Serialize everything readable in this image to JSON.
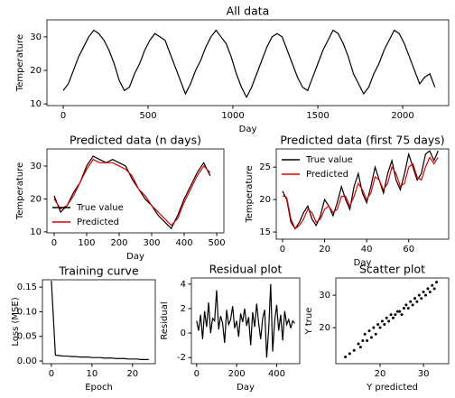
{
  "chart_data": [
    {
      "type": "line",
      "title": "All data",
      "xlabel": "Day",
      "ylabel": "Temperature",
      "x": [
        0,
        30,
        60,
        90,
        120,
        150,
        180,
        210,
        240,
        270,
        300,
        330,
        360,
        390,
        420,
        450,
        480,
        510,
        540,
        570,
        600,
        630,
        660,
        690,
        720,
        750,
        780,
        810,
        840,
        870,
        900,
        930,
        960,
        990,
        1020,
        1050,
        1080,
        1110,
        1140,
        1170,
        1200,
        1230,
        1260,
        1290,
        1320,
        1350,
        1380,
        1410,
        1440,
        1470,
        1500,
        1530,
        1560,
        1590,
        1620,
        1650,
        1680,
        1710,
        1740,
        1770,
        1800,
        1830,
        1860,
        1890,
        1920,
        1950,
        1980,
        2010,
        2040,
        2070,
        2100,
        2130,
        2160,
        2190
      ],
      "values": [
        14,
        16,
        20,
        24,
        27,
        30,
        32,
        31,
        29,
        26,
        22,
        17,
        14,
        15,
        19,
        22,
        26,
        29,
        31,
        30,
        29,
        25,
        21,
        17,
        13,
        16,
        20,
        23,
        27,
        30,
        32,
        30,
        28,
        24,
        19,
        15,
        12,
        15,
        19,
        23,
        27,
        30,
        31,
        30,
        26,
        22,
        18,
        15,
        14,
        18,
        22,
        26,
        29,
        32,
        31,
        28,
        24,
        19,
        16,
        13,
        15,
        19,
        22,
        26,
        29,
        32,
        31,
        28,
        24,
        20,
        16,
        18,
        19,
        15
      ],
      "color": "#000000",
      "xlim": [
        -96,
        2271
      ],
      "xticks": [
        0,
        500,
        1000,
        1500,
        2000
      ],
      "ylim": [
        9.5,
        35.1
      ],
      "yticks": [
        10,
        20,
        30
      ]
    },
    {
      "type": "line",
      "title": "Predicted data (n days)",
      "xlabel": "Day",
      "ylabel": "Temperature",
      "x": [
        0,
        20,
        40,
        60,
        80,
        100,
        120,
        140,
        160,
        180,
        200,
        220,
        240,
        260,
        280,
        300,
        320,
        340,
        360,
        380,
        400,
        420,
        440,
        460,
        480
      ],
      "series": [
        {
          "name": "True value",
          "color": "#000000",
          "values": [
            21,
            16,
            18,
            22,
            25,
            30,
            33,
            32,
            31,
            32,
            31,
            30,
            26,
            23,
            20,
            18,
            15,
            13,
            11,
            15,
            20,
            24,
            28,
            31,
            27
          ]
        },
        {
          "name": "Predicted",
          "color": "#dd0000",
          "values": [
            20,
            17,
            18,
            21,
            25,
            29,
            32,
            31,
            31,
            31,
            30,
            29,
            27,
            23,
            21,
            18,
            16,
            14,
            12,
            14,
            19,
            23,
            27,
            30,
            28
          ]
        }
      ],
      "legend": "lower left",
      "xlim": [
        -22,
        522
      ],
      "xticks": [
        0,
        100,
        200,
        300,
        400,
        500
      ],
      "ylim": [
        9.7,
        35.2
      ],
      "yticks": [
        10,
        20,
        30
      ]
    },
    {
      "type": "line",
      "title": "Predicted data (first 75 days)",
      "xlabel": "Day",
      "ylabel": "Temperature",
      "x": [
        0,
        2,
        4,
        6,
        8,
        10,
        12,
        14,
        16,
        18,
        20,
        22,
        24,
        26,
        28,
        30,
        32,
        34,
        36,
        38,
        40,
        42,
        44,
        46,
        48,
        50,
        52,
        54,
        56,
        58,
        60,
        62,
        64,
        66,
        68,
        70,
        72,
        74
      ],
      "series": [
        {
          "name": "True value",
          "color": "#000000",
          "values": [
            21.3,
            20,
            16.5,
            15.5,
            16.5,
            18,
            19,
            17,
            16,
            17.5,
            20,
            19,
            17.5,
            19.5,
            22,
            20,
            18.5,
            22,
            24,
            21,
            19.5,
            22,
            25,
            23,
            21,
            24,
            26,
            23,
            21.5,
            24,
            27,
            25,
            23,
            24,
            27,
            27.5,
            26,
            27.5
          ]
        },
        {
          "name": "Predicted",
          "color": "#dd0000",
          "values": [
            20.6,
            20.3,
            17,
            15.5,
            16,
            17,
            18.5,
            18,
            16.5,
            17,
            18.5,
            19,
            18,
            18.5,
            20.5,
            20.5,
            19,
            20.5,
            22.5,
            21.5,
            20,
            21,
            23.5,
            23,
            21.5,
            22.5,
            25,
            24,
            22,
            22.5,
            25,
            25.5,
            23.5,
            23,
            25,
            26.5,
            25.5,
            26.5
          ]
        }
      ],
      "legend": "upper left",
      "xlim": [
        -3,
        79
      ],
      "xticks": [
        0,
        20,
        40,
        60
      ],
      "ylim": [
        13.9,
        27.8
      ],
      "yticks": [
        15,
        20,
        25
      ]
    },
    {
      "type": "line",
      "title": "Training curve",
      "xlabel": "Epoch",
      "ylabel": "Loss (MSE)",
      "x": [
        0,
        1,
        2,
        3,
        4,
        5,
        6,
        7,
        8,
        9,
        10,
        11,
        12,
        13,
        14,
        15,
        16,
        17,
        18,
        19,
        20,
        21,
        22,
        23,
        24
      ],
      "values": [
        0.163,
        0.012,
        0.011,
        0.01,
        0.01,
        0.009,
        0.009,
        0.008,
        0.008,
        0.008,
        0.007,
        0.007,
        0.007,
        0.006,
        0.006,
        0.006,
        0.005,
        0.005,
        0.005,
        0.004,
        0.004,
        0.004,
        0.003,
        0.003,
        0.003
      ],
      "color": "#000000",
      "xlim": [
        -2.2,
        25.6
      ],
      "xticks": [
        0,
        10,
        20
      ],
      "ylim": [
        -0.0055,
        0.165
      ],
      "yticks": [
        {
          "value": 0,
          "label": "0.00"
        },
        {
          "value": 0.05,
          "label": "0.05"
        },
        {
          "value": 0.1,
          "label": "0.10"
        },
        {
          "value": 0.15,
          "label": "0.15"
        }
      ]
    },
    {
      "type": "line",
      "title": "Residual plot",
      "xlabel": "Day",
      "ylabel": "Residual",
      "x": [
        0,
        10,
        20,
        30,
        40,
        50,
        60,
        70,
        80,
        90,
        100,
        110,
        120,
        130,
        140,
        150,
        160,
        170,
        180,
        190,
        200,
        210,
        220,
        230,
        240,
        250,
        260,
        270,
        280,
        290,
        300,
        310,
        320,
        330,
        340,
        350,
        360,
        370,
        380,
        390,
        400,
        410,
        420,
        430,
        440,
        450,
        460,
        470,
        480,
        490
      ],
      "values": [
        1.0,
        0.2,
        1.5,
        -0.5,
        1.8,
        0.5,
        2.5,
        0.0,
        1.2,
        1.0,
        3.5,
        0.3,
        1.4,
        0.8,
        -0.8,
        1.9,
        0.7,
        1.1,
        2.2,
        0.4,
        1.0,
        -0.3,
        1.6,
        0.9,
        2.0,
        0.6,
        1.3,
        -1.0,
        1.7,
        0.5,
        2.4,
        0.8,
        -0.5,
        1.2,
        1.9,
        -2.0,
        0.3,
        4.0,
        -1.5,
        1.0,
        2.3,
        0.2,
        1.5,
        -0.6,
        1.8,
        0.7,
        1.1,
        0.4,
        1.0,
        0.8
      ],
      "color": "#000000",
      "xlim": [
        -26,
        515
      ],
      "xticks": [
        0,
        200,
        400
      ],
      "ylim": [
        -2.5,
        4.5
      ],
      "yticks": [
        -2,
        0,
        2,
        4
      ]
    },
    {
      "type": "scatter",
      "title": "Scatter plot",
      "xlabel": "Y predicted",
      "ylabel": "Y true",
      "x": [
        12,
        13,
        14,
        15,
        15.5,
        16,
        16.5,
        17,
        17.5,
        18,
        18.5,
        19,
        19.5,
        20,
        20.5,
        21,
        21.5,
        22,
        22.5,
        23,
        23.5,
        24,
        24.5,
        25,
        25.5,
        26,
        26.5,
        27,
        27.5,
        28,
        28.5,
        29,
        29.5,
        30,
        30.5,
        31,
        31.5,
        32,
        32.5,
        33
      ],
      "values": [
        11,
        12,
        13,
        15,
        14,
        16,
        18,
        16,
        19,
        17,
        20,
        18,
        21,
        20,
        22,
        21,
        23,
        22,
        24,
        23,
        24,
        25,
        25,
        24,
        26,
        27,
        26,
        28,
        27,
        29,
        28,
        30,
        29,
        31,
        30,
        32,
        31,
        33,
        32,
        34
      ],
      "color": "#000000",
      "xlim": [
        9.8,
        35.8
      ],
      "xticks": [
        20,
        30
      ],
      "ylim": [
        8.9,
        35.3
      ],
      "yticks": [
        20,
        30
      ]
    }
  ]
}
